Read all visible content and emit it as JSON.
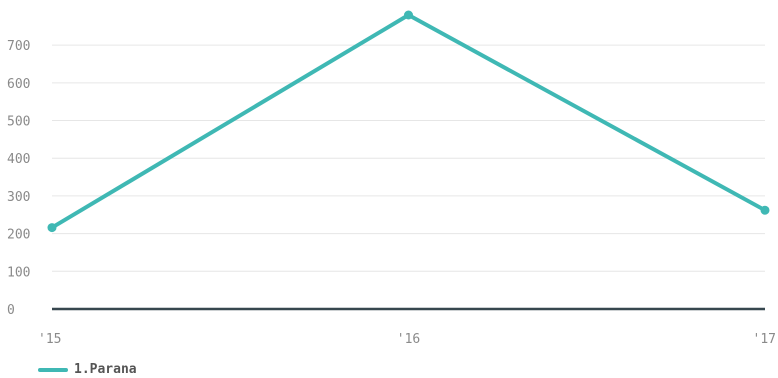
{
  "chart_data": {
    "type": "line",
    "categories": [
      "'15",
      "'16",
      "'17"
    ],
    "series": [
      {
        "name": "1.Parana",
        "values": [
          216,
          780,
          262
        ],
        "color": "#3fb8b4"
      }
    ],
    "yticks": [
      0,
      100,
      200,
      300,
      400,
      500,
      600,
      700
    ],
    "ylim": [
      0,
      780
    ],
    "grid": true,
    "legend": "bottom-left",
    "gridline_color": "#e6e6e6",
    "baseline_color": "#37474f"
  },
  "legend": {
    "label": "1.Parana"
  }
}
